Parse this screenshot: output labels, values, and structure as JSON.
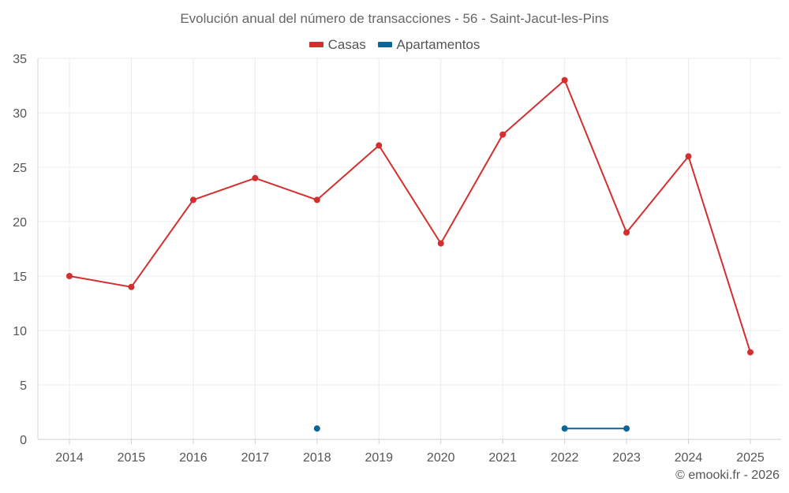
{
  "chart_data": {
    "type": "line",
    "title": "Evolución anual del número de transacciones - 56 - Saint-Jacut-les-Pins",
    "categories": [
      "2014",
      "2015",
      "2016",
      "2017",
      "2018",
      "2019",
      "2020",
      "2021",
      "2022",
      "2023",
      "2024",
      "2025"
    ],
    "series": [
      {
        "name": "Casas",
        "color": "#d32f2f",
        "values": [
          15,
          14,
          22,
          24,
          22,
          27,
          18,
          28,
          33,
          19,
          26,
          8
        ]
      },
      {
        "name": "Apartamentos",
        "color": "#0d6496",
        "values": [
          null,
          null,
          null,
          null,
          1,
          null,
          null,
          null,
          1,
          1,
          null,
          null
        ]
      }
    ],
    "ylim": [
      0,
      35
    ],
    "yticks": [
      0,
      5,
      10,
      15,
      20,
      25,
      30,
      35
    ],
    "xlabel": "",
    "ylabel": "",
    "grid": true,
    "legend": "top-center"
  },
  "credit": "© emooki.fr - 2026"
}
